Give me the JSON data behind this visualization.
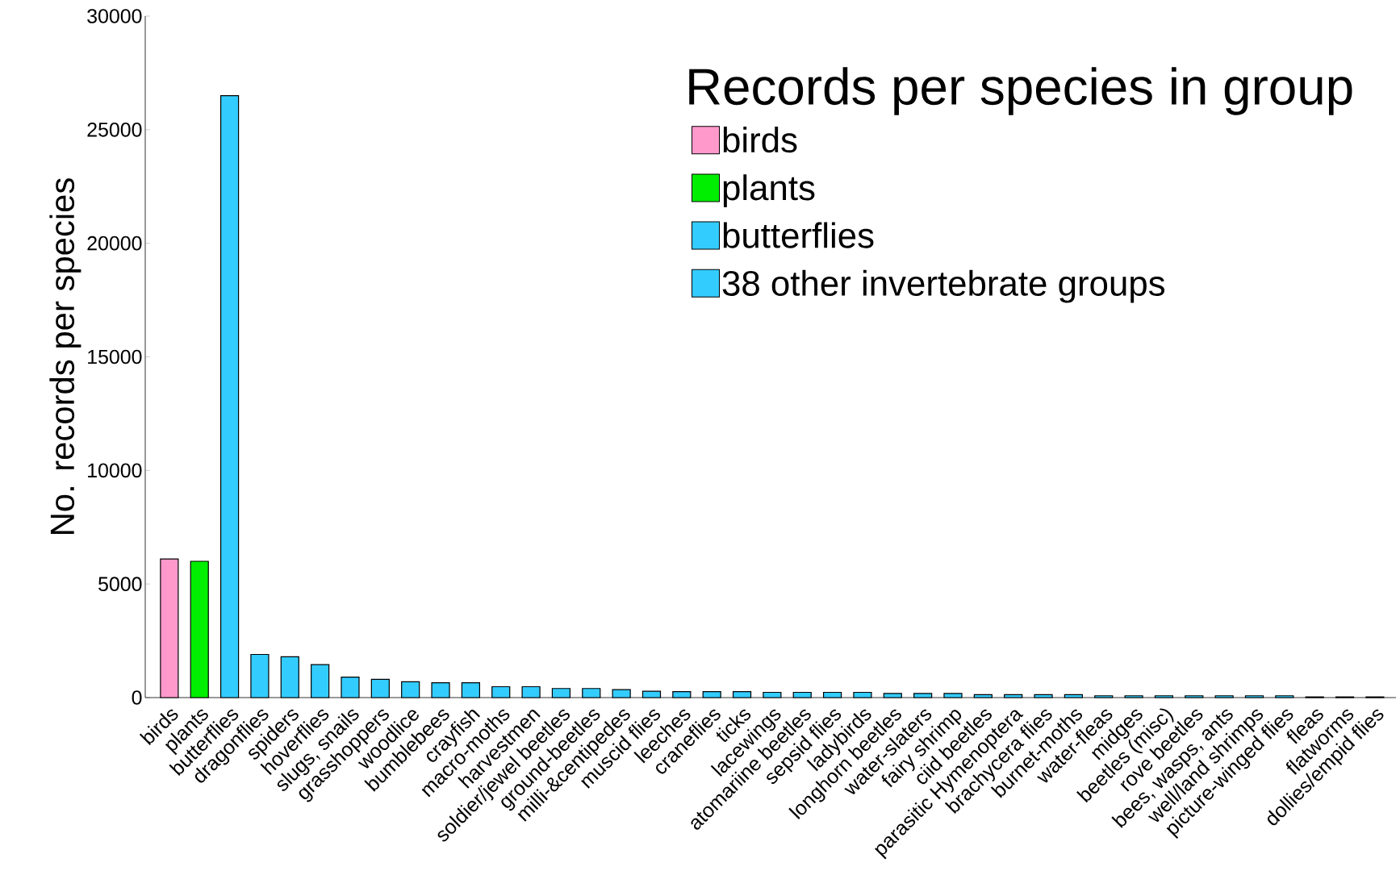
{
  "chart_data": {
    "type": "bar",
    "ylabel": "No. records per species",
    "legend_title": "Records per species in group",
    "legend": "top right",
    "ylim": [
      0,
      30000
    ],
    "yticks": [
      0,
      5000,
      10000,
      15000,
      20000,
      25000,
      30000
    ],
    "categories": [
      "birds",
      "plants",
      "butterflies",
      "dragonflies",
      "spiders",
      "hoverflies",
      "slugs, snails",
      "grasshoppers",
      "woodlice",
      "bumblebees",
      "crayfish",
      "macro-moths",
      "harvestmen",
      "soldier/jewel beetles",
      "ground-beetles",
      "milli-&centipedes",
      "muscid flies",
      "leeches",
      "craneflies",
      "ticks",
      "lacewings",
      "atomariine beetles",
      "sepsid flies",
      "ladybirds",
      "longhorn beetles",
      "water-slaters",
      "fairy shrimp",
      "ciid beetles",
      "parasitic Hymenoptera",
      "brachycera flies",
      "burnet-moths",
      "water-fleas",
      "midges",
      "beetles (misc)",
      "rove beetles",
      "bees, wasps, ants",
      "well/land shrimps",
      "picture-winged flies",
      "fleas",
      "flatworms",
      "dollies/empid flies"
    ],
    "series": [
      {
        "name": "birds",
        "color": "#ff99cc",
        "values": [
          6100,
          null,
          null,
          null,
          null,
          null,
          null,
          null,
          null,
          null,
          null,
          null,
          null,
          null,
          null,
          null,
          null,
          null,
          null,
          null,
          null,
          null,
          null,
          null,
          null,
          null,
          null,
          null,
          null,
          null,
          null,
          null,
          null,
          null,
          null,
          null,
          null,
          null,
          null,
          null,
          null
        ]
      },
      {
        "name": "plants",
        "color": "#00ee00",
        "values": [
          null,
          6000,
          null,
          null,
          null,
          null,
          null,
          null,
          null,
          null,
          null,
          null,
          null,
          null,
          null,
          null,
          null,
          null,
          null,
          null,
          null,
          null,
          null,
          null,
          null,
          null,
          null,
          null,
          null,
          null,
          null,
          null,
          null,
          null,
          null,
          null,
          null,
          null,
          null,
          null,
          null
        ]
      },
      {
        "name": "butterflies",
        "color": "#33ccff",
        "values": [
          null,
          null,
          26500,
          null,
          null,
          null,
          null,
          null,
          null,
          null,
          null,
          null,
          null,
          null,
          null,
          null,
          null,
          null,
          null,
          null,
          null,
          null,
          null,
          null,
          null,
          null,
          null,
          null,
          null,
          null,
          null,
          null,
          null,
          null,
          null,
          null,
          null,
          null,
          null,
          null,
          null
        ]
      },
      {
        "name": "38 other invertebrate groups",
        "color": "#33ccff",
        "values": [
          null,
          null,
          null,
          1900,
          1800,
          1450,
          900,
          800,
          700,
          650,
          650,
          480,
          480,
          400,
          400,
          350,
          280,
          260,
          260,
          260,
          230,
          230,
          230,
          230,
          180,
          180,
          180,
          130,
          130,
          130,
          130,
          80,
          80,
          80,
          80,
          80,
          80,
          80,
          30,
          30,
          30
        ]
      }
    ]
  }
}
